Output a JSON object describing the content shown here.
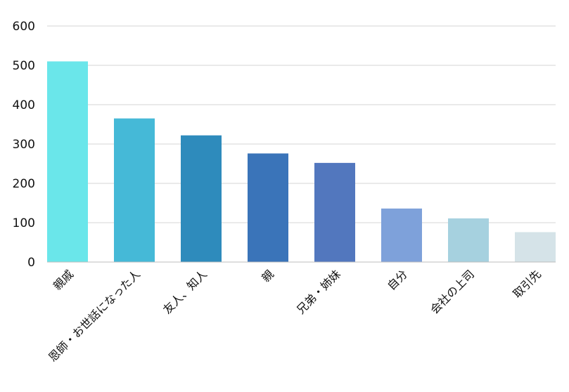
{
  "chart_data": {
    "type": "bar",
    "title": "",
    "xlabel": "",
    "ylabel": "",
    "ylim": [
      0,
      600
    ],
    "yticks": [
      0,
      100,
      200,
      300,
      400,
      500,
      600
    ],
    "grid": true,
    "categories": [
      "親戚",
      "恩師・お世話になった人",
      "友人、知人",
      "親",
      "兄弟・姉妹",
      "自分",
      "会社の上司",
      "取引先"
    ],
    "values": [
      510,
      365,
      322,
      276,
      252,
      136,
      111,
      76
    ],
    "colors": [
      "#6ae6ea",
      "#45b9d7",
      "#2e8bbc",
      "#3a74b9",
      "#5277be",
      "#7ea1da",
      "#a6d1df",
      "#d5e3e8"
    ]
  }
}
